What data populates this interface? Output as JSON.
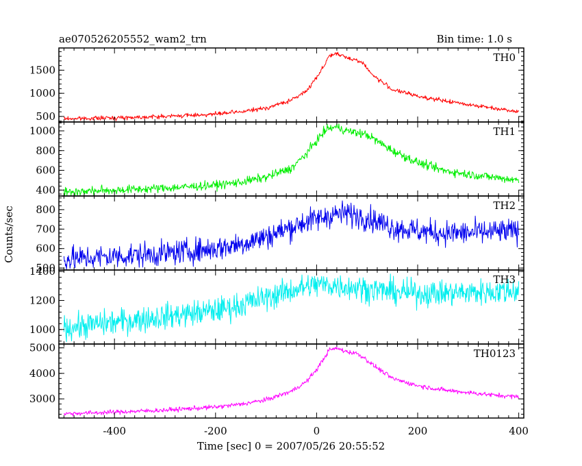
{
  "chart_data": {
    "type": "line",
    "title": "ae070526205552_wam2_trn",
    "subtitle": "Bin time: 1.0 s",
    "xlabel": "Time [sec] 0 = 2007/05/26 20:55:52",
    "ylabel": "Counts/sec",
    "xlim": [
      -510,
      410
    ],
    "x_ticks": [
      "-400",
      "-200",
      "0",
      "200",
      "400"
    ],
    "grid": false,
    "panels": [
      {
        "name": "TH0",
        "color": "#ff0000",
        "ylim": [
          380,
          1980
        ],
        "y_ticks": [
          "500",
          "1000",
          "1500"
        ],
        "noise": 22,
        "x": [
          -500,
          -400,
          -300,
          -200,
          -150,
          -100,
          -50,
          -20,
          0,
          15,
          25,
          40,
          60,
          80,
          95,
          110,
          150,
          200,
          250,
          300,
          350,
          400
        ],
        "y": [
          450,
          470,
          500,
          550,
          600,
          680,
          850,
          1050,
          1350,
          1600,
          1820,
          1850,
          1770,
          1720,
          1620,
          1400,
          1080,
          940,
          840,
          760,
          680,
          610
        ]
      },
      {
        "name": "TH1",
        "color": "#00ee00",
        "ylim": [
          340,
          1090
        ],
        "y_ticks": [
          "400",
          "600",
          "800",
          "1000"
        ],
        "noise": 22,
        "x": [
          -500,
          -400,
          -300,
          -200,
          -150,
          -100,
          -50,
          -20,
          0,
          20,
          40,
          60,
          80,
          100,
          150,
          200,
          250,
          300,
          350,
          400
        ],
        "y": [
          380,
          400,
          420,
          450,
          480,
          530,
          620,
          770,
          900,
          1020,
          1040,
          1000,
          980,
          960,
          800,
          680,
          600,
          560,
          530,
          500
        ]
      },
      {
        "name": "TH2",
        "color": "#0000ee",
        "ylim": [
          490,
          870
        ],
        "y_ticks": [
          "500",
          "600",
          "700",
          "800"
        ],
        "noise": 32,
        "x": [
          -500,
          -400,
          -300,
          -200,
          -150,
          -100,
          -50,
          -20,
          0,
          30,
          60,
          90,
          120,
          150,
          200,
          250,
          300,
          350,
          400
        ],
        "y": [
          545,
          560,
          575,
          600,
          625,
          660,
          710,
          740,
          750,
          775,
          780,
          765,
          740,
          710,
          690,
          680,
          680,
          685,
          690
        ]
      },
      {
        "name": "TH3",
        "color": "#00eeee",
        "ylim": [
          900,
          1410
        ],
        "y_ticks": [
          "1000",
          "1200",
          "1400"
        ],
        "noise": 45,
        "x": [
          -500,
          -400,
          -300,
          -200,
          -150,
          -100,
          -50,
          0,
          50,
          100,
          150,
          200,
          250,
          300,
          350,
          400
        ],
        "y": [
          1010,
          1050,
          1090,
          1130,
          1170,
          1220,
          1270,
          1310,
          1300,
          1280,
          1260,
          1250,
          1250,
          1255,
          1260,
          1270
        ]
      },
      {
        "name": "TH0123",
        "color": "#ff00ff",
        "ylim": [
          2250,
          5150
        ],
        "y_ticks": [
          "3000",
          "4000",
          "5000"
        ],
        "noise": 45,
        "x": [
          -500,
          -400,
          -300,
          -200,
          -150,
          -100,
          -50,
          -20,
          0,
          15,
          25,
          40,
          60,
          80,
          95,
          110,
          150,
          200,
          250,
          300,
          350,
          400
        ],
        "y": [
          2420,
          2480,
          2560,
          2680,
          2790,
          2960,
          3300,
          3680,
          4150,
          4600,
          4920,
          4980,
          4850,
          4780,
          4600,
          4350,
          3800,
          3520,
          3350,
          3250,
          3150,
          3080
        ]
      }
    ]
  }
}
